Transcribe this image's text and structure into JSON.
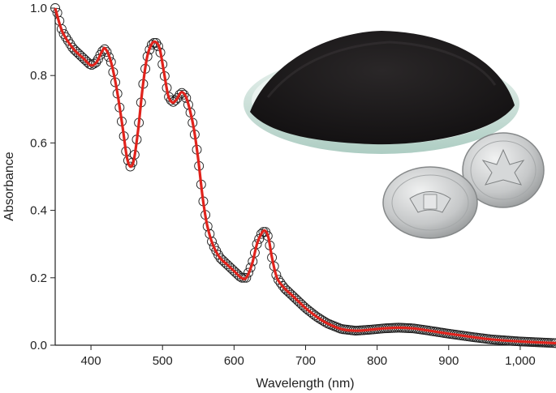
{
  "chart_data": {
    "type": "line",
    "xlabel": "Wavelength (nm)",
    "ylabel": "Absorbance",
    "xlim": [
      350,
      1050
    ],
    "ylim": [
      0.0,
      1.0
    ],
    "x_ticks": [
      400,
      500,
      600,
      700,
      800,
      900,
      1000
    ],
    "x_tick_labels": [
      "400",
      "500",
      "600",
      "700",
      "800",
      "900",
      "1,000"
    ],
    "y_ticks": [
      0.0,
      0.2,
      0.4,
      0.6,
      0.8,
      1.0
    ],
    "y_tick_labels": [
      "0.0",
      "0.2",
      "0.4",
      "0.6",
      "0.8",
      "1.0"
    ],
    "grid": false,
    "series": [
      {
        "style": "open-circle markers",
        "color": "#222222",
        "x": [
          350,
          360,
          375,
          390,
          400,
          408,
          415,
          420,
          428,
          436,
          444,
          450,
          455,
          460,
          466,
          472,
          478,
          484,
          490,
          496,
          502,
          508,
          514,
          520,
          526,
          532,
          538,
          544,
          550,
          556,
          562,
          570,
          580,
          590,
          600,
          610,
          617,
          625,
          632,
          638,
          643,
          648,
          653,
          660,
          670,
          680,
          690,
          700,
          715,
          730,
          750,
          770,
          790,
          810,
          830,
          850,
          870,
          900,
          930,
          960,
          1000,
          1050
        ],
        "y": [
          1.01,
          0.93,
          0.88,
          0.85,
          0.83,
          0.84,
          0.87,
          0.88,
          0.84,
          0.76,
          0.65,
          0.56,
          0.53,
          0.55,
          0.64,
          0.76,
          0.85,
          0.89,
          0.9,
          0.88,
          0.81,
          0.74,
          0.72,
          0.73,
          0.75,
          0.74,
          0.7,
          0.64,
          0.55,
          0.44,
          0.36,
          0.3,
          0.26,
          0.24,
          0.22,
          0.2,
          0.2,
          0.24,
          0.3,
          0.33,
          0.34,
          0.32,
          0.26,
          0.2,
          0.17,
          0.15,
          0.13,
          0.11,
          0.085,
          0.065,
          0.048,
          0.043,
          0.046,
          0.05,
          0.052,
          0.05,
          0.044,
          0.034,
          0.025,
          0.017,
          0.011,
          0.006
        ]
      },
      {
        "style": "solid line",
        "color": "#e0231c",
        "x": [
          350,
          360,
          375,
          390,
          400,
          408,
          415,
          420,
          428,
          436,
          444,
          450,
          455,
          460,
          466,
          472,
          478,
          484,
          490,
          496,
          502,
          508,
          514,
          520,
          526,
          532,
          538,
          544,
          550,
          556,
          562,
          570,
          580,
          590,
          600,
          610,
          617,
          625,
          632,
          638,
          643,
          648,
          653,
          660,
          670,
          680,
          690,
          700,
          715,
          730,
          750,
          770,
          790,
          810,
          830,
          850,
          870,
          900,
          930,
          960,
          1000,
          1050
        ],
        "y": [
          1.01,
          0.93,
          0.88,
          0.85,
          0.83,
          0.84,
          0.87,
          0.88,
          0.84,
          0.76,
          0.65,
          0.56,
          0.53,
          0.55,
          0.64,
          0.76,
          0.85,
          0.89,
          0.9,
          0.88,
          0.81,
          0.74,
          0.72,
          0.73,
          0.75,
          0.74,
          0.7,
          0.64,
          0.55,
          0.44,
          0.36,
          0.3,
          0.26,
          0.24,
          0.22,
          0.2,
          0.2,
          0.24,
          0.3,
          0.33,
          0.34,
          0.32,
          0.26,
          0.2,
          0.17,
          0.15,
          0.13,
          0.11,
          0.085,
          0.065,
          0.048,
          0.043,
          0.046,
          0.05,
          0.052,
          0.05,
          0.044,
          0.034,
          0.025,
          0.017,
          0.011,
          0.006
        ]
      }
    ],
    "inset_photo": {
      "subject": "black powder heaped on a glass dish beside two silver coins",
      "colors": {
        "powder": "#1d1b1c",
        "dish_edge": "#b9d3c9",
        "coin": "#bfc1c2"
      }
    }
  }
}
